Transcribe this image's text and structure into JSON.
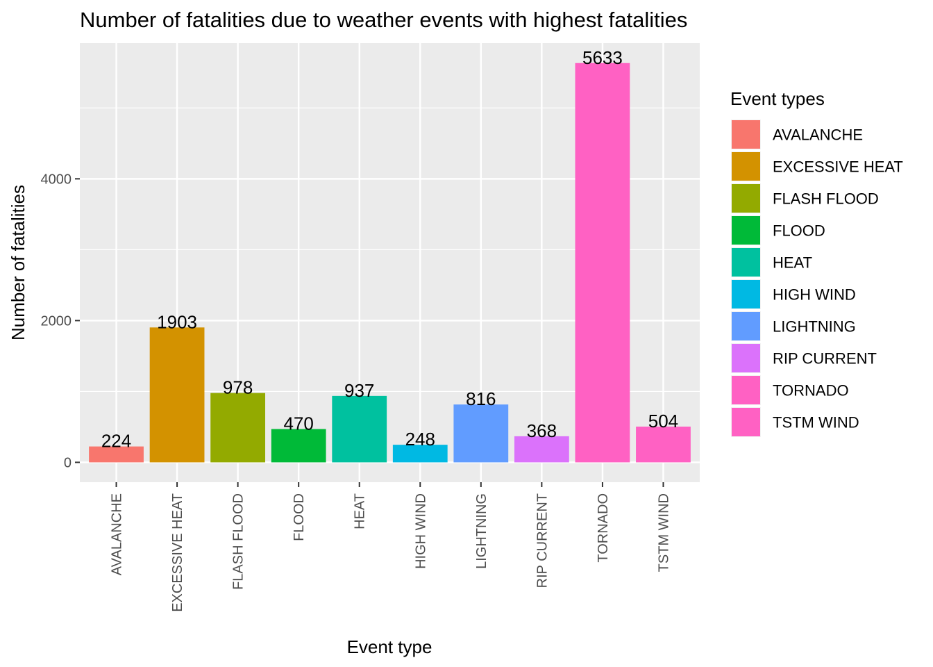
{
  "chart_data": {
    "type": "bar",
    "title": "Number of fatalities due to weather events with highest fatalities",
    "xlabel": "Event type",
    "ylabel": "Number of fatalities",
    "categories": [
      "AVALANCHE",
      "EXCESSIVE HEAT",
      "FLASH FLOOD",
      "FLOOD",
      "HEAT",
      "HIGH WIND",
      "LIGHTNING",
      "RIP CURRENT",
      "TORNADO",
      "TSTM WIND"
    ],
    "values": [
      224,
      1903,
      978,
      470,
      937,
      248,
      816,
      368,
      5633,
      504
    ],
    "colors": [
      "#F8766D",
      "#D39200",
      "#93AA00",
      "#00BA38",
      "#00C19F",
      "#00B9E3",
      "#619CFF",
      "#DB72FB",
      "#FF61C3",
      "#FF61C3"
    ],
    "ylim": [
      -280,
      5915
    ],
    "yticks": [
      0,
      2000,
      4000
    ],
    "ytick_labels": [
      "0",
      "2000",
      "4000"
    ],
    "grid": true,
    "legend": {
      "title": "Event types",
      "position": "right"
    }
  }
}
